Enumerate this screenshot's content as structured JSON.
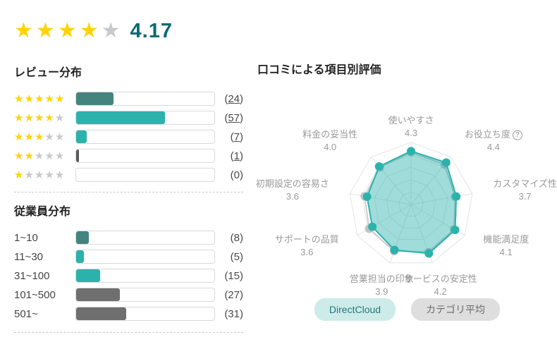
{
  "colors": {
    "star_filled": "#ffd306",
    "star_empty": "#c9c9c9",
    "teal": "#2cb2ac",
    "teal_dark": "#44847f",
    "gray_bar": "#6f6f6f",
    "sliver_dark": "#5a5a5a",
    "rating_value": "#0a6b70",
    "radar_grid": "#e4e4e4",
    "avg_line": "#cdcdcd",
    "avg_dot": "#c2c2c2"
  },
  "overall": {
    "rating": "4.17",
    "stars_filled": 4,
    "stars_total": 5
  },
  "review_distribution": {
    "title": "レビュー分布",
    "rows": [
      {
        "stars": 5,
        "count": 24,
        "display": "24",
        "link": true,
        "bar_color": "#44847f"
      },
      {
        "stars": 4,
        "count": 57,
        "display": "57",
        "link": true,
        "bar_color": "#2cb2ac"
      },
      {
        "stars": 3,
        "count": 7,
        "display": "7",
        "link": true,
        "bar_color": "#2cb2ac"
      },
      {
        "stars": 2,
        "count": 1,
        "display": "1",
        "link": true,
        "bar_color": "#5a5a5a"
      },
      {
        "stars": 1,
        "count": 0,
        "display": "0",
        "link": false,
        "bar_color": "#2cb2ac"
      }
    ]
  },
  "employee_distribution": {
    "title": "従業員分布",
    "rows": [
      {
        "label": "1~10",
        "count": 8,
        "display": "8",
        "bar_color": "#44847f"
      },
      {
        "label": "11~30",
        "count": 5,
        "display": "5",
        "bar_color": "#2cb2ac"
      },
      {
        "label": "31~100",
        "count": 15,
        "display": "15",
        "bar_color": "#2cb2ac"
      },
      {
        "label": "101~500",
        "count": 27,
        "display": "27",
        "bar_color": "#6f6f6f"
      },
      {
        "label": "501~",
        "count": 31,
        "display": "31",
        "bar_color": "#6f6f6f"
      }
    ]
  },
  "radar_section": {
    "title": "口コミによる項目別評価",
    "legend": [
      {
        "label": "DirectCloud",
        "style": "primary"
      },
      {
        "label": "カテゴリ平均",
        "style": "muted"
      }
    ]
  },
  "chart_data": {
    "type": "radar",
    "title": "口コミによる項目別評価",
    "categories": [
      "使いやすさ",
      "お役立ち度",
      "カスタマイズ性",
      "機能満足度",
      "サービスの安定性",
      "営業担当の印象",
      "サポートの品質",
      "初期設定の容易さ",
      "料金の妥当性"
    ],
    "help_axis": "お役立ち度",
    "value_labels": [
      "4.3",
      "4.4",
      "3.7",
      "4.1",
      "4.2",
      "3.9",
      "3.6",
      "3.6",
      "4.0"
    ],
    "series": [
      {
        "name": "DirectCloud",
        "values": [
          4.3,
          4.4,
          3.7,
          4.1,
          4.2,
          3.9,
          3.6,
          3.6,
          4.0
        ],
        "color": "#2cb2ac",
        "fill_opacity": 0.45
      },
      {
        "name": "カテゴリ平均",
        "values": [
          4.2,
          4.2,
          3.6,
          4.0,
          4.1,
          4.0,
          3.9,
          3.8,
          3.9
        ],
        "color": "#cdcdcd",
        "fill_opacity": 0
      }
    ],
    "scale": {
      "min": 0,
      "max": 5,
      "rings": 5
    },
    "legend_position": "bottom",
    "grid": true
  }
}
